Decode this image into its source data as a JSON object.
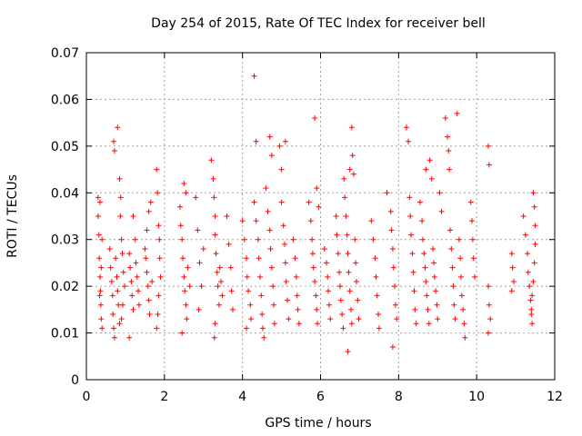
{
  "chart_data": {
    "type": "scatter",
    "title": "Day 254 of 2015, Rate Of TEC Index for receiver bell",
    "xlabel": "GPS time / hours",
    "ylabel": "ROTI / TECUs",
    "xlim": [
      0,
      12
    ],
    "ylim": [
      0,
      0.07
    ],
    "x_ticks": [
      0,
      2,
      4,
      6,
      8,
      10,
      12
    ],
    "x_tick_labels": [
      "0",
      "2",
      "4",
      "6",
      "8",
      "10",
      "12"
    ],
    "y_ticks": [
      0,
      0.01,
      0.02,
      0.03,
      0.04,
      0.05,
      0.06,
      0.07
    ],
    "y_tick_labels": [
      "0",
      "0.01",
      "0.02",
      "0.03",
      "0.04",
      "0.05",
      "0.06",
      "0.07"
    ],
    "grid": true,
    "marker": "+",
    "color": "#ff0000",
    "series": [
      {
        "name": "ROTI",
        "points": [
          [
            0.3,
            0.039
          ],
          [
            0.3,
            0.035
          ],
          [
            0.32,
            0.031
          ],
          [
            0.33,
            0.026
          ],
          [
            0.35,
            0.022
          ],
          [
            0.36,
            0.019
          ],
          [
            0.37,
            0.016
          ],
          [
            0.38,
            0.013
          ],
          [
            0.4,
            0.011
          ],
          [
            0.35,
            0.038
          ],
          [
            0.4,
            0.03
          ],
          [
            0.38,
            0.024
          ],
          [
            0.34,
            0.018
          ],
          [
            0.6,
            0.028
          ],
          [
            0.62,
            0.024
          ],
          [
            0.65,
            0.021
          ],
          [
            0.67,
            0.018
          ],
          [
            0.68,
            0.014
          ],
          [
            0.7,
            0.011
          ],
          [
            0.72,
            0.009
          ],
          [
            0.7,
            0.051
          ],
          [
            0.72,
            0.049
          ],
          [
            0.75,
            0.026
          ],
          [
            0.78,
            0.022
          ],
          [
            0.8,
            0.019
          ],
          [
            0.82,
            0.016
          ],
          [
            0.85,
            0.012
          ],
          [
            0.8,
            0.054
          ],
          [
            0.85,
            0.043
          ],
          [
            0.88,
            0.039
          ],
          [
            0.87,
            0.035
          ],
          [
            0.9,
            0.03
          ],
          [
            0.92,
            0.027
          ],
          [
            0.95,
            0.023
          ],
          [
            0.98,
            0.02
          ],
          [
            0.93,
            0.016
          ],
          [
            0.9,
            0.013
          ],
          [
            1.1,
            0.027
          ],
          [
            1.12,
            0.024
          ],
          [
            1.15,
            0.021
          ],
          [
            1.17,
            0.018
          ],
          [
            1.2,
            0.015
          ],
          [
            1.1,
            0.009
          ],
          [
            1.25,
            0.03
          ],
          [
            1.27,
            0.025
          ],
          [
            1.3,
            0.022
          ],
          [
            1.33,
            0.019
          ],
          [
            1.35,
            0.016
          ],
          [
            1.2,
            0.035
          ],
          [
            1.5,
            0.028
          ],
          [
            1.52,
            0.026
          ],
          [
            1.55,
            0.023
          ],
          [
            1.58,
            0.02
          ],
          [
            1.6,
            0.017
          ],
          [
            1.62,
            0.014
          ],
          [
            1.55,
            0.032
          ],
          [
            1.6,
            0.036
          ],
          [
            1.65,
            0.038
          ],
          [
            1.68,
            0.021
          ],
          [
            1.8,
            0.045
          ],
          [
            1.82,
            0.04
          ],
          [
            1.85,
            0.033
          ],
          [
            1.87,
            0.03
          ],
          [
            1.88,
            0.026
          ],
          [
            1.9,
            0.022
          ],
          [
            1.85,
            0.018
          ],
          [
            1.83,
            0.014
          ],
          [
            1.8,
            0.011
          ],
          [
            2.4,
            0.037
          ],
          [
            2.42,
            0.033
          ],
          [
            2.45,
            0.03
          ],
          [
            2.47,
            0.026
          ],
          [
            2.5,
            0.022
          ],
          [
            2.52,
            0.019
          ],
          [
            2.55,
            0.016
          ],
          [
            2.57,
            0.013
          ],
          [
            2.5,
            0.042
          ],
          [
            2.55,
            0.04
          ],
          [
            2.6,
            0.024
          ],
          [
            2.65,
            0.02
          ],
          [
            2.45,
            0.01
          ],
          [
            2.8,
            0.039
          ],
          [
            2.85,
            0.032
          ],
          [
            2.9,
            0.025
          ],
          [
            2.95,
            0.02
          ],
          [
            2.88,
            0.015
          ],
          [
            3.0,
            0.028
          ],
          [
            3.2,
            0.047
          ],
          [
            3.25,
            0.043
          ],
          [
            3.27,
            0.039
          ],
          [
            3.3,
            0.035
          ],
          [
            3.3,
            0.031
          ],
          [
            3.32,
            0.027
          ],
          [
            3.35,
            0.023
          ],
          [
            3.37,
            0.02
          ],
          [
            3.4,
            0.016
          ],
          [
            3.3,
            0.012
          ],
          [
            3.28,
            0.009
          ],
          [
            3.42,
            0.024
          ],
          [
            3.45,
            0.021
          ],
          [
            3.48,
            0.018
          ],
          [
            3.6,
            0.035
          ],
          [
            3.65,
            0.029
          ],
          [
            3.7,
            0.024
          ],
          [
            3.72,
            0.019
          ],
          [
            3.75,
            0.015
          ],
          [
            4.0,
            0.034
          ],
          [
            4.05,
            0.03
          ],
          [
            4.1,
            0.026
          ],
          [
            4.12,
            0.022
          ],
          [
            4.15,
            0.019
          ],
          [
            4.2,
            0.016
          ],
          [
            4.22,
            0.013
          ],
          [
            4.1,
            0.011
          ],
          [
            4.3,
            0.065
          ],
          [
            4.35,
            0.051
          ],
          [
            4.3,
            0.038
          ],
          [
            4.35,
            0.034
          ],
          [
            4.4,
            0.03
          ],
          [
            4.42,
            0.026
          ],
          [
            4.45,
            0.022
          ],
          [
            4.48,
            0.018
          ],
          [
            4.5,
            0.014
          ],
          [
            4.52,
            0.011
          ],
          [
            4.55,
            0.009
          ],
          [
            4.6,
            0.041
          ],
          [
            4.65,
            0.036
          ],
          [
            4.7,
            0.032
          ],
          [
            4.72,
            0.028
          ],
          [
            4.75,
            0.024
          ],
          [
            4.78,
            0.02
          ],
          [
            4.8,
            0.016
          ],
          [
            4.82,
            0.012
          ],
          [
            4.7,
            0.052
          ],
          [
            4.75,
            0.048
          ],
          [
            4.95,
            0.05
          ],
          [
            5.0,
            0.045
          ],
          [
            5.0,
            0.038
          ],
          [
            5.05,
            0.033
          ],
          [
            5.08,
            0.029
          ],
          [
            5.1,
            0.025
          ],
          [
            5.12,
            0.021
          ],
          [
            5.15,
            0.017
          ],
          [
            5.18,
            0.013
          ],
          [
            5.1,
            0.051
          ],
          [
            5.3,
            0.03
          ],
          [
            5.35,
            0.026
          ],
          [
            5.38,
            0.022
          ],
          [
            5.4,
            0.018
          ],
          [
            5.42,
            0.015
          ],
          [
            5.45,
            0.012
          ],
          [
            5.7,
            0.038
          ],
          [
            5.75,
            0.034
          ],
          [
            5.78,
            0.03
          ],
          [
            5.8,
            0.027
          ],
          [
            5.82,
            0.024
          ],
          [
            5.85,
            0.021
          ],
          [
            5.88,
            0.018
          ],
          [
            5.9,
            0.015
          ],
          [
            5.92,
            0.012
          ],
          [
            5.85,
            0.056
          ],
          [
            5.9,
            0.041
          ],
          [
            5.95,
            0.037
          ],
          [
            6.1,
            0.028
          ],
          [
            6.15,
            0.025
          ],
          [
            6.18,
            0.022
          ],
          [
            6.2,
            0.019
          ],
          [
            6.22,
            0.016
          ],
          [
            6.25,
            0.013
          ],
          [
            6.4,
            0.035
          ],
          [
            6.42,
            0.031
          ],
          [
            6.45,
            0.027
          ],
          [
            6.48,
            0.023
          ],
          [
            6.5,
            0.02
          ],
          [
            6.52,
            0.017
          ],
          [
            6.55,
            0.014
          ],
          [
            6.58,
            0.011
          ],
          [
            6.6,
            0.043
          ],
          [
            6.62,
            0.039
          ],
          [
            6.65,
            0.035
          ],
          [
            6.68,
            0.031
          ],
          [
            6.7,
            0.027
          ],
          [
            6.72,
            0.023
          ],
          [
            6.75,
            0.019
          ],
          [
            6.78,
            0.015
          ],
          [
            6.8,
            0.012
          ],
          [
            6.7,
            0.006
          ],
          [
            6.75,
            0.045
          ],
          [
            6.8,
            0.054
          ],
          [
            6.82,
            0.048
          ],
          [
            6.85,
            0.044
          ],
          [
            6.88,
            0.03
          ],
          [
            6.9,
            0.025
          ],
          [
            6.92,
            0.021
          ],
          [
            6.95,
            0.017
          ],
          [
            6.98,
            0.013
          ],
          [
            7.3,
            0.034
          ],
          [
            7.35,
            0.03
          ],
          [
            7.4,
            0.026
          ],
          [
            7.42,
            0.022
          ],
          [
            7.45,
            0.018
          ],
          [
            7.48,
            0.014
          ],
          [
            7.5,
            0.011
          ],
          [
            7.7,
            0.04
          ],
          [
            7.8,
            0.036
          ],
          [
            7.82,
            0.032
          ],
          [
            7.85,
            0.028
          ],
          [
            7.87,
            0.024
          ],
          [
            7.9,
            0.02
          ],
          [
            7.92,
            0.016
          ],
          [
            7.95,
            0.013
          ],
          [
            7.85,
            0.007
          ],
          [
            8.2,
            0.054
          ],
          [
            8.25,
            0.051
          ],
          [
            8.28,
            0.039
          ],
          [
            8.3,
            0.035
          ],
          [
            8.32,
            0.031
          ],
          [
            8.35,
            0.027
          ],
          [
            8.38,
            0.023
          ],
          [
            8.4,
            0.019
          ],
          [
            8.42,
            0.015
          ],
          [
            8.45,
            0.012
          ],
          [
            8.55,
            0.038
          ],
          [
            8.6,
            0.034
          ],
          [
            8.62,
            0.03
          ],
          [
            8.65,
            0.027
          ],
          [
            8.68,
            0.024
          ],
          [
            8.7,
            0.021
          ],
          [
            8.72,
            0.018
          ],
          [
            8.75,
            0.015
          ],
          [
            8.78,
            0.012
          ],
          [
            8.7,
            0.045
          ],
          [
            8.8,
            0.047
          ],
          [
            8.85,
            0.043
          ],
          [
            8.88,
            0.028
          ],
          [
            8.9,
            0.025
          ],
          [
            8.92,
            0.022
          ],
          [
            8.95,
            0.019
          ],
          [
            8.98,
            0.016
          ],
          [
            9.0,
            0.013
          ],
          [
            9.05,
            0.04
          ],
          [
            9.1,
            0.036
          ],
          [
            9.2,
            0.056
          ],
          [
            9.25,
            0.052
          ],
          [
            9.28,
            0.049
          ],
          [
            9.3,
            0.045
          ],
          [
            9.32,
            0.032
          ],
          [
            9.35,
            0.028
          ],
          [
            9.38,
            0.024
          ],
          [
            9.4,
            0.02
          ],
          [
            9.42,
            0.016
          ],
          [
            9.45,
            0.013
          ],
          [
            9.5,
            0.057
          ],
          [
            9.55,
            0.03
          ],
          [
            9.58,
            0.026
          ],
          [
            9.6,
            0.022
          ],
          [
            9.62,
            0.018
          ],
          [
            9.65,
            0.015
          ],
          [
            9.68,
            0.012
          ],
          [
            9.7,
            0.009
          ],
          [
            9.85,
            0.038
          ],
          [
            9.88,
            0.034
          ],
          [
            9.9,
            0.03
          ],
          [
            9.92,
            0.026
          ],
          [
            9.95,
            0.022
          ],
          [
            10.3,
            0.05
          ],
          [
            10.32,
            0.046
          ],
          [
            10.3,
            0.02
          ],
          [
            10.32,
            0.016
          ],
          [
            10.35,
            0.013
          ],
          [
            10.3,
            0.01
          ],
          [
            10.9,
            0.027
          ],
          [
            10.92,
            0.024
          ],
          [
            10.95,
            0.021
          ],
          [
            10.9,
            0.019
          ],
          [
            11.2,
            0.035
          ],
          [
            11.25,
            0.031
          ],
          [
            11.3,
            0.027
          ],
          [
            11.32,
            0.023
          ],
          [
            11.35,
            0.02
          ],
          [
            11.38,
            0.017
          ],
          [
            11.4,
            0.014
          ],
          [
            11.42,
            0.012
          ],
          [
            11.45,
            0.04
          ],
          [
            11.48,
            0.037
          ],
          [
            11.5,
            0.033
          ],
          [
            11.5,
            0.029
          ],
          [
            11.48,
            0.025
          ],
          [
            11.45,
            0.021
          ],
          [
            11.42,
            0.018
          ],
          [
            11.4,
            0.015
          ]
        ]
      }
    ]
  }
}
